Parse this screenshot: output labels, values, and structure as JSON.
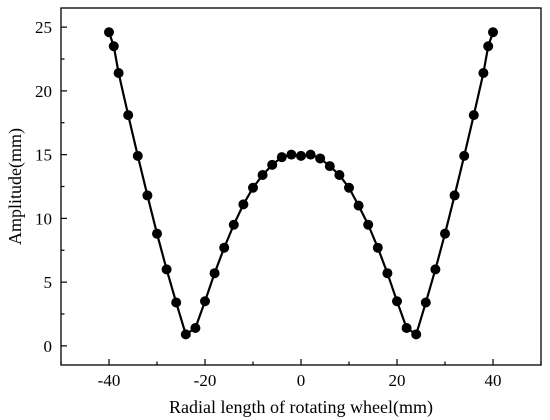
{
  "chart_data": {
    "type": "line",
    "title": "",
    "xlabel": "Radial length of rotating wheel(mm)",
    "ylabel": "Amplitude(mm)",
    "xlim": [
      -50,
      50
    ],
    "ylim": [
      -1.5,
      26.5
    ],
    "xticks": [
      -40,
      -20,
      0,
      20,
      40
    ],
    "yticks": [
      0,
      5,
      10,
      15,
      20,
      25
    ],
    "grid": false,
    "legend": "none",
    "series": [
      {
        "marker": "circle",
        "color": "#000000",
        "x": [
          -40,
          -39,
          -38,
          -36,
          -34,
          -32,
          -30,
          -28,
          -26,
          -24,
          -22,
          -20,
          -18,
          -16,
          -14,
          -12,
          -10,
          -8,
          -6,
          -4,
          -2,
          0,
          2,
          4,
          6,
          8,
          10,
          12,
          14,
          16,
          18,
          20,
          22,
          24,
          26,
          28,
          30,
          32,
          34,
          36,
          38,
          39,
          40
        ],
        "y": [
          24.6,
          23.5,
          21.4,
          18.1,
          14.9,
          11.8,
          8.8,
          6.0,
          3.4,
          0.9,
          1.4,
          3.5,
          5.7,
          7.7,
          9.5,
          11.1,
          12.4,
          13.4,
          14.2,
          14.8,
          15.0,
          14.9,
          15.0,
          14.7,
          14.1,
          13.4,
          12.4,
          11.0,
          9.5,
          7.7,
          5.7,
          3.5,
          1.4,
          0.9,
          3.4,
          6.0,
          8.8,
          11.8,
          14.9,
          18.1,
          21.4,
          23.5,
          24.6
        ]
      }
    ]
  }
}
